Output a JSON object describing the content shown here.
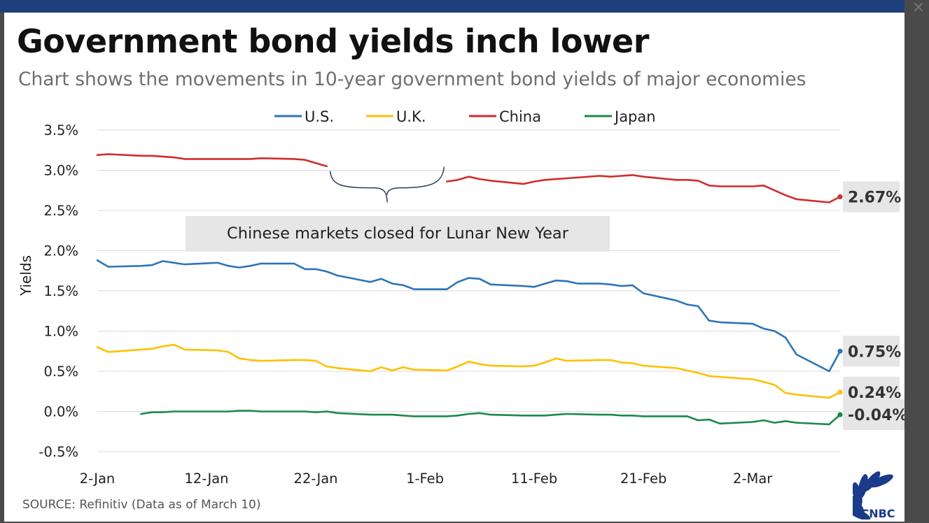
{
  "header": {
    "title": "Government bond yields inch lower",
    "subtitle": "Chart shows the movements in 10-year government bond yields of major economies"
  },
  "footer": {
    "source": "SOURCE: Refinitiv (Data as of March 10)",
    "logo_text": "CNBC"
  },
  "window": {
    "close_glyph": "×"
  },
  "chart_data": {
    "type": "line",
    "title": "Government bond yields inch lower",
    "subtitle": "Chart shows the movements in 10-year government bond yields of major economies",
    "xlabel": "",
    "ylabel": "Yields",
    "x_axis": {
      "type": "date",
      "range": [
        "2020-01-02",
        "2020-03-10"
      ],
      "ticks": [
        {
          "date": "2020-01-02",
          "label": "2-Jan"
        },
        {
          "date": "2020-01-12",
          "label": "12-Jan"
        },
        {
          "date": "2020-01-22",
          "label": "22-Jan"
        },
        {
          "date": "2020-02-01",
          "label": "1-Feb"
        },
        {
          "date": "2020-02-11",
          "label": "11-Feb"
        },
        {
          "date": "2020-02-21",
          "label": "21-Feb"
        },
        {
          "date": "2020-03-02",
          "label": "2-Mar"
        }
      ]
    },
    "y_axis": {
      "ylim": [
        -0.5,
        3.5
      ],
      "ticks": [
        {
          "value": 3.5,
          "label": "3.5%"
        },
        {
          "value": 3.0,
          "label": "3.0%"
        },
        {
          "value": 2.5,
          "label": "2.5%"
        },
        {
          "value": 2.0,
          "label": "2.0%"
        },
        {
          "value": 1.5,
          "label": "1.5%"
        },
        {
          "value": 1.0,
          "label": "1.0%"
        },
        {
          "value": 0.5,
          "label": "0.5%"
        },
        {
          "value": 0.0,
          "label": "0.0%"
        },
        {
          "value": -0.5,
          "label": "-0.5%"
        }
      ]
    },
    "grid": true,
    "legend": "top-center",
    "series": [
      {
        "name": "U.S.",
        "color": "#2e75b6",
        "end_label": "0.75%",
        "points": [
          [
            "2020-01-02",
            1.88
          ],
          [
            "2020-01-03",
            1.8
          ],
          [
            "2020-01-06",
            1.81
          ],
          [
            "2020-01-07",
            1.82
          ],
          [
            "2020-01-08",
            1.87
          ],
          [
            "2020-01-09",
            1.85
          ],
          [
            "2020-01-10",
            1.83
          ],
          [
            "2020-01-13",
            1.85
          ],
          [
            "2020-01-14",
            1.81
          ],
          [
            "2020-01-15",
            1.79
          ],
          [
            "2020-01-16",
            1.81
          ],
          [
            "2020-01-17",
            1.84
          ],
          [
            "2020-01-20",
            1.84
          ],
          [
            "2020-01-21",
            1.77
          ],
          [
            "2020-01-22",
            1.77
          ],
          [
            "2020-01-23",
            1.74
          ],
          [
            "2020-01-24",
            1.69
          ],
          [
            "2020-01-27",
            1.61
          ],
          [
            "2020-01-28",
            1.65
          ],
          [
            "2020-01-29",
            1.59
          ],
          [
            "2020-01-30",
            1.57
          ],
          [
            "2020-01-31",
            1.52
          ],
          [
            "2020-02-03",
            1.52
          ],
          [
            "2020-02-04",
            1.61
          ],
          [
            "2020-02-05",
            1.66
          ],
          [
            "2020-02-06",
            1.65
          ],
          [
            "2020-02-07",
            1.58
          ],
          [
            "2020-02-10",
            1.56
          ],
          [
            "2020-02-11",
            1.55
          ],
          [
            "2020-02-12",
            1.59
          ],
          [
            "2020-02-13",
            1.63
          ],
          [
            "2020-02-14",
            1.62
          ],
          [
            "2020-02-15",
            1.59
          ],
          [
            "2020-02-17",
            1.59
          ],
          [
            "2020-02-18",
            1.58
          ],
          [
            "2020-02-19",
            1.56
          ],
          [
            "2020-02-20",
            1.57
          ],
          [
            "2020-02-21",
            1.47
          ],
          [
            "2020-02-24",
            1.38
          ],
          [
            "2020-02-25",
            1.33
          ],
          [
            "2020-02-26",
            1.31
          ],
          [
            "2020-02-27",
            1.13
          ],
          [
            "2020-02-28",
            1.11
          ],
          [
            "2020-03-02",
            1.09
          ],
          [
            "2020-03-03",
            1.03
          ],
          [
            "2020-03-04",
            1.0
          ],
          [
            "2020-03-05",
            0.92
          ],
          [
            "2020-03-06",
            0.71
          ],
          [
            "2020-03-09",
            0.5
          ],
          [
            "2020-03-10",
            0.75
          ]
        ]
      },
      {
        "name": "U.K.",
        "color": "#ffc000",
        "end_label": "0.24%",
        "points": [
          [
            "2020-01-02",
            0.8
          ],
          [
            "2020-01-03",
            0.74
          ],
          [
            "2020-01-06",
            0.77
          ],
          [
            "2020-01-07",
            0.78
          ],
          [
            "2020-01-08",
            0.81
          ],
          [
            "2020-01-09",
            0.83
          ],
          [
            "2020-01-10",
            0.77
          ],
          [
            "2020-01-13",
            0.76
          ],
          [
            "2020-01-14",
            0.74
          ],
          [
            "2020-01-15",
            0.66
          ],
          [
            "2020-01-16",
            0.64
          ],
          [
            "2020-01-17",
            0.63
          ],
          [
            "2020-01-20",
            0.64
          ],
          [
            "2020-01-21",
            0.64
          ],
          [
            "2020-01-22",
            0.63
          ],
          [
            "2020-01-23",
            0.56
          ],
          [
            "2020-01-24",
            0.54
          ],
          [
            "2020-01-27",
            0.5
          ],
          [
            "2020-01-28",
            0.55
          ],
          [
            "2020-01-29",
            0.51
          ],
          [
            "2020-01-30",
            0.55
          ],
          [
            "2020-01-31",
            0.52
          ],
          [
            "2020-02-03",
            0.51
          ],
          [
            "2020-02-04",
            0.56
          ],
          [
            "2020-02-05",
            0.62
          ],
          [
            "2020-02-06",
            0.59
          ],
          [
            "2020-02-07",
            0.57
          ],
          [
            "2020-02-10",
            0.56
          ],
          [
            "2020-02-11",
            0.57
          ],
          [
            "2020-02-12",
            0.61
          ],
          [
            "2020-02-13",
            0.66
          ],
          [
            "2020-02-14",
            0.63
          ],
          [
            "2020-02-17",
            0.64
          ],
          [
            "2020-02-18",
            0.64
          ],
          [
            "2020-02-19",
            0.61
          ],
          [
            "2020-02-20",
            0.6
          ],
          [
            "2020-02-21",
            0.57
          ],
          [
            "2020-02-24",
            0.54
          ],
          [
            "2020-02-25",
            0.51
          ],
          [
            "2020-02-26",
            0.48
          ],
          [
            "2020-02-27",
            0.44
          ],
          [
            "2020-02-28",
            0.43
          ],
          [
            "2020-03-02",
            0.4
          ],
          [
            "2020-03-03",
            0.37
          ],
          [
            "2020-03-04",
            0.33
          ],
          [
            "2020-03-05",
            0.23
          ],
          [
            "2020-03-06",
            0.21
          ],
          [
            "2020-03-09",
            0.17
          ],
          [
            "2020-03-10",
            0.24
          ]
        ]
      },
      {
        "name": "China",
        "color": "#d22c2c",
        "end_label": "2.67%",
        "segments": [
          [
            [
              "2020-01-02",
              3.19
            ],
            [
              "2020-01-03",
              3.2
            ],
            [
              "2020-01-06",
              3.18
            ],
            [
              "2020-01-07",
              3.18
            ],
            [
              "2020-01-08",
              3.17
            ],
            [
              "2020-01-09",
              3.16
            ],
            [
              "2020-01-10",
              3.14
            ],
            [
              "2020-01-13",
              3.14
            ],
            [
              "2020-01-14",
              3.14
            ],
            [
              "2020-01-15",
              3.14
            ],
            [
              "2020-01-16",
              3.14
            ],
            [
              "2020-01-17",
              3.15
            ],
            [
              "2020-01-20",
              3.14
            ],
            [
              "2020-01-21",
              3.13
            ],
            [
              "2020-01-22",
              3.09
            ],
            [
              "2020-01-23",
              3.05
            ]
          ],
          [
            [
              "2020-02-03",
              2.86
            ],
            [
              "2020-02-04",
              2.88
            ],
            [
              "2020-02-05",
              2.92
            ],
            [
              "2020-02-06",
              2.89
            ],
            [
              "2020-02-07",
              2.87
            ],
            [
              "2020-02-10",
              2.83
            ],
            [
              "2020-02-11",
              2.86
            ],
            [
              "2020-02-12",
              2.88
            ],
            [
              "2020-02-13",
              2.89
            ],
            [
              "2020-02-14",
              2.9
            ],
            [
              "2020-02-17",
              2.93
            ],
            [
              "2020-02-18",
              2.92
            ],
            [
              "2020-02-19",
              2.93
            ],
            [
              "2020-02-20",
              2.94
            ],
            [
              "2020-02-21",
              2.92
            ],
            [
              "2020-02-24",
              2.88
            ],
            [
              "2020-02-25",
              2.88
            ],
            [
              "2020-02-26",
              2.87
            ],
            [
              "2020-02-27",
              2.81
            ],
            [
              "2020-02-28",
              2.8
            ],
            [
              "2020-03-02",
              2.8
            ],
            [
              "2020-03-03",
              2.81
            ],
            [
              "2020-03-04",
              2.75
            ],
            [
              "2020-03-05",
              2.69
            ],
            [
              "2020-03-06",
              2.64
            ],
            [
              "2020-03-09",
              2.6
            ],
            [
              "2020-03-10",
              2.67
            ]
          ]
        ]
      },
      {
        "name": "Japan",
        "color": "#1a8a4a",
        "end_label": "-0.04%",
        "points": [
          [
            "2020-01-06",
            -0.03
          ],
          [
            "2020-01-07",
            -0.01
          ],
          [
            "2020-01-08",
            -0.01
          ],
          [
            "2020-01-09",
            0.0
          ],
          [
            "2020-01-10",
            0.0
          ],
          [
            "2020-01-14",
            0.0
          ],
          [
            "2020-01-15",
            0.01
          ],
          [
            "2020-01-16",
            0.01
          ],
          [
            "2020-01-17",
            0.0
          ],
          [
            "2020-01-20",
            0.0
          ],
          [
            "2020-01-21",
            0.0
          ],
          [
            "2020-01-22",
            -0.01
          ],
          [
            "2020-01-23",
            0.0
          ],
          [
            "2020-01-24",
            -0.02
          ],
          [
            "2020-01-27",
            -0.04
          ],
          [
            "2020-01-28",
            -0.04
          ],
          [
            "2020-01-29",
            -0.04
          ],
          [
            "2020-01-30",
            -0.05
          ],
          [
            "2020-01-31",
            -0.06
          ],
          [
            "2020-02-03",
            -0.06
          ],
          [
            "2020-02-04",
            -0.05
          ],
          [
            "2020-02-05",
            -0.03
          ],
          [
            "2020-02-06",
            -0.02
          ],
          [
            "2020-02-07",
            -0.04
          ],
          [
            "2020-02-10",
            -0.05
          ],
          [
            "2020-02-12",
            -0.05
          ],
          [
            "2020-02-13",
            -0.04
          ],
          [
            "2020-02-14",
            -0.03
          ],
          [
            "2020-02-17",
            -0.04
          ],
          [
            "2020-02-18",
            -0.04
          ],
          [
            "2020-02-19",
            -0.05
          ],
          [
            "2020-02-20",
            -0.05
          ],
          [
            "2020-02-21",
            -0.06
          ],
          [
            "2020-02-24",
            -0.06
          ],
          [
            "2020-02-25",
            -0.06
          ],
          [
            "2020-02-26",
            -0.11
          ],
          [
            "2020-02-27",
            -0.1
          ],
          [
            "2020-02-28",
            -0.15
          ],
          [
            "2020-03-02",
            -0.13
          ],
          [
            "2020-03-03",
            -0.11
          ],
          [
            "2020-03-04",
            -0.14
          ],
          [
            "2020-03-05",
            -0.12
          ],
          [
            "2020-03-06",
            -0.14
          ],
          [
            "2020-03-09",
            -0.16
          ],
          [
            "2020-03-10",
            -0.04
          ]
        ]
      }
    ],
    "annotations": [
      {
        "text": "Chinese markets closed for Lunar New Year",
        "from": "2020-01-23",
        "to": "2020-02-03"
      }
    ]
  }
}
